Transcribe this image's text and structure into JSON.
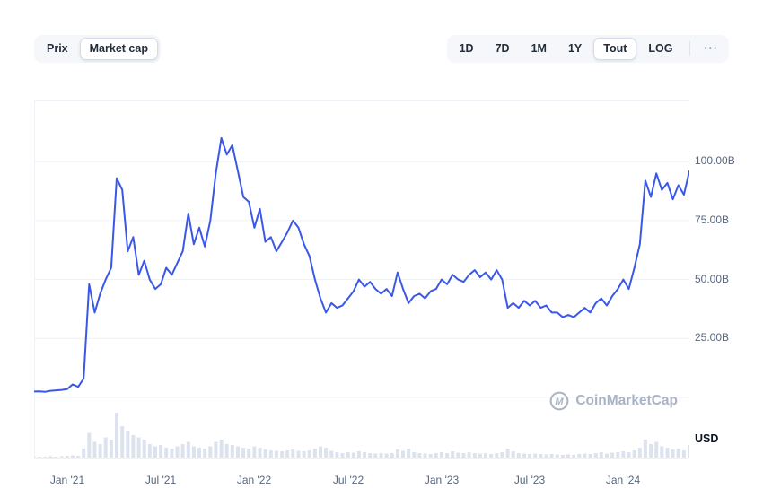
{
  "toolbar": {
    "toggle": [
      {
        "label": "Prix",
        "active": false
      },
      {
        "label": "Market cap",
        "active": true
      }
    ],
    "ranges": [
      {
        "label": "1D",
        "active": false
      },
      {
        "label": "7D",
        "active": false
      },
      {
        "label": "1M",
        "active": false
      },
      {
        "label": "1Y",
        "active": false
      },
      {
        "label": "Tout",
        "active": true
      },
      {
        "label": "LOG",
        "active": false
      }
    ],
    "more_label": "···"
  },
  "watermark": {
    "text": "CoinMarketCap"
  },
  "chart_data": {
    "type": "line",
    "title": "",
    "xlabel": "",
    "ylabel": "Market cap (USD)",
    "legend_position": "none",
    "grid": true,
    "x_ticks": [
      "Jan '21",
      "Jul '21",
      "Jan '22",
      "Jul '22",
      "Jan '23",
      "Jul '23",
      "Jan '24"
    ],
    "x_tick_indices": [
      6,
      23,
      40,
      57,
      74,
      90,
      107
    ],
    "y_ticks": [
      {
        "label": "100.00B",
        "value": 100
      },
      {
        "label": "75.00B",
        "value": 75
      },
      {
        "label": "50.00B",
        "value": 50
      },
      {
        "label": "25.00B",
        "value": 25
      }
    ],
    "y_unit": "USD",
    "ylim": [
      0,
      126
    ],
    "grid_values": [
      0,
      25,
      50,
      75,
      100
    ],
    "series": [
      {
        "name": "Market cap",
        "unit": "billions USD",
        "values": [
          2.5,
          2.6,
          2.4,
          2.8,
          3.0,
          3.2,
          3.5,
          5.5,
          4.5,
          8,
          48,
          36,
          44,
          50,
          55,
          93,
          88,
          62,
          68,
          52,
          58,
          50,
          46,
          48,
          55,
          52,
          57,
          62,
          78,
          65,
          72,
          64,
          75,
          95,
          110,
          103,
          107,
          96,
          85,
          83,
          72,
          80,
          66,
          68,
          62,
          66,
          70,
          75,
          72,
          65,
          60,
          50,
          42,
          36,
          40,
          38,
          39,
          42,
          45,
          50,
          47,
          49,
          46,
          44,
          46,
          43,
          53,
          46,
          40,
          43,
          44,
          42,
          45,
          46,
          50,
          48,
          52,
          50,
          49,
          52,
          54,
          51,
          53,
          50,
          54,
          50,
          38,
          40,
          38,
          41,
          39,
          41,
          38,
          39,
          36,
          36,
          34,
          35,
          34,
          36,
          38,
          36,
          40,
          42,
          39,
          43,
          46,
          50,
          46,
          55,
          65,
          92,
          85,
          95,
          88,
          91,
          84,
          90,
          86,
          96
        ]
      }
    ],
    "volume": {
      "name": "Volume",
      "values": [
        2,
        2,
        2,
        3,
        2,
        3,
        4,
        5,
        4,
        20,
        55,
        35,
        30,
        45,
        40,
        100,
        70,
        60,
        50,
        45,
        40,
        30,
        25,
        28,
        22,
        20,
        25,
        30,
        35,
        25,
        22,
        20,
        25,
        35,
        40,
        30,
        28,
        25,
        22,
        20,
        25,
        22,
        18,
        16,
        15,
        14,
        16,
        18,
        15,
        14,
        16,
        20,
        25,
        22,
        15,
        12,
        10,
        12,
        11,
        14,
        12,
        10,
        9,
        10,
        9,
        10,
        18,
        15,
        20,
        12,
        10,
        9,
        8,
        10,
        12,
        10,
        14,
        11,
        10,
        12,
        10,
        9,
        10,
        8,
        10,
        12,
        20,
        14,
        10,
        9,
        8,
        9,
        8,
        7,
        8,
        7,
        6,
        7,
        6,
        8,
        9,
        8,
        10,
        12,
        9,
        11,
        12,
        14,
        12,
        16,
        22,
        40,
        30,
        35,
        25,
        22,
        18,
        20,
        16,
        28
      ]
    },
    "colors": {
      "line": "#3a57e8",
      "volume": "#dde3ee",
      "grid": "#eef1f6",
      "axis_text": "#58667e",
      "watermark": "#a9b3c4"
    }
  }
}
